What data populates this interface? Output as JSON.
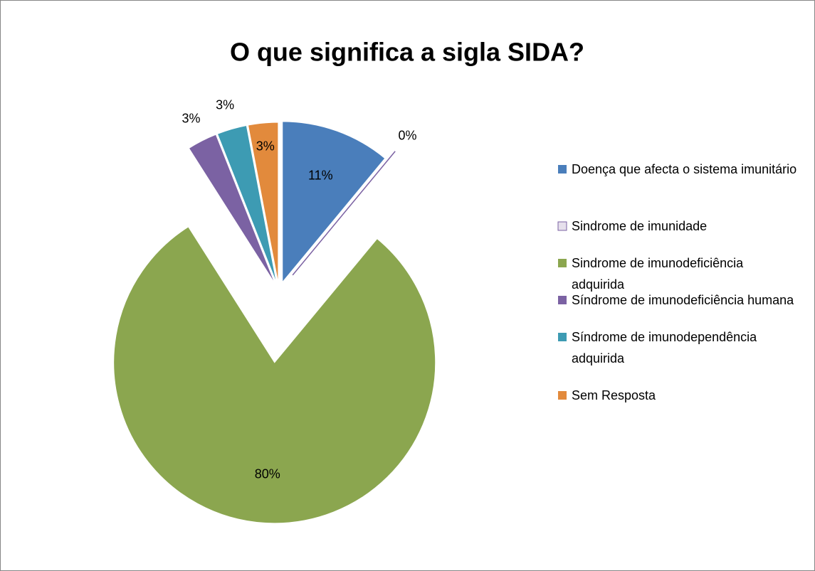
{
  "chart_data": {
    "type": "pie",
    "title": "O que significa a sigla SIDA?",
    "categories": [
      "Doença que afecta o sistema imunitário",
      "Sindrome de imunidade",
      "Sindrome de imunodeficiência adquirida",
      "Síndrome de imunodeficiência humana",
      "Síndrome de imunodependência adquirida",
      "Sem Resposta"
    ],
    "values": [
      11,
      0,
      80,
      3,
      3,
      3
    ],
    "value_labels": [
      "11%",
      "0%",
      "80%",
      "3%",
      "3%",
      "3%"
    ],
    "colors": [
      "#4a7ebb",
      "#e6e0ec",
      "#8ba64f",
      "#7b62a3",
      "#3d9bb3",
      "#e28a3c"
    ],
    "legend": "right"
  }
}
